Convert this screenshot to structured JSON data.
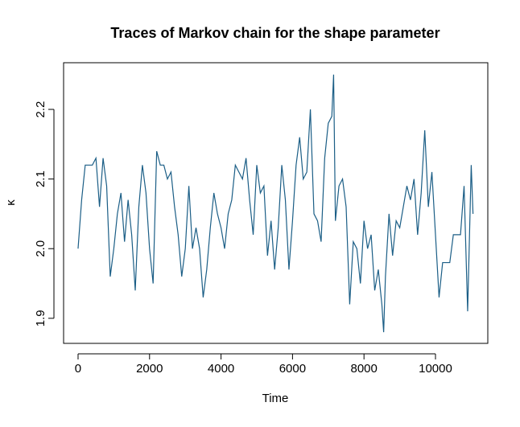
{
  "chart_data": {
    "type": "line",
    "title": "Traces of Markov chain for the shape parameter",
    "xlabel": "Time",
    "ylabel": "κ",
    "x": [
      0,
      100,
      200,
      300,
      400,
      500,
      600,
      700,
      800,
      900,
      1000,
      1100,
      1200,
      1300,
      1400,
      1500,
      1600,
      1700,
      1800,
      1900,
      2000,
      2100,
      2200,
      2300,
      2400,
      2500,
      2600,
      2700,
      2800,
      2900,
      3000,
      3100,
      3200,
      3300,
      3400,
      3500,
      3600,
      3700,
      3800,
      3900,
      4000,
      4100,
      4200,
      4300,
      4400,
      4500,
      4600,
      4700,
      4800,
      4900,
      5000,
      5100,
      5200,
      5300,
      5400,
      5500,
      5600,
      5700,
      5800,
      5900,
      6000,
      6100,
      6200,
      6300,
      6400,
      6500,
      6600,
      6700,
      6800,
      6900,
      7000,
      7100,
      7150,
      7200,
      7300,
      7400,
      7500,
      7600,
      7700,
      7800,
      7900,
      8000,
      8100,
      8200,
      8300,
      8400,
      8500,
      8550,
      8600,
      8700,
      8800,
      8900,
      9000,
      9100,
      9200,
      9300,
      9400,
      9500,
      9600,
      9700,
      9800,
      9900,
      10000,
      10100,
      10200,
      10300,
      10400,
      10500,
      10600,
      10700,
      10800,
      10900,
      11000,
      11050
    ],
    "series": [
      {
        "name": "κ",
        "color": "#1b5e86",
        "values": [
          2.0,
          2.07,
          2.12,
          2.12,
          2.12,
          2.13,
          2.06,
          2.13,
          2.09,
          1.96,
          2.0,
          2.05,
          2.08,
          2.01,
          2.07,
          2.02,
          1.94,
          2.06,
          2.12,
          2.08,
          2.0,
          1.95,
          2.14,
          2.12,
          2.12,
          2.1,
          2.11,
          2.06,
          2.02,
          1.96,
          2.0,
          2.09,
          2.0,
          2.03,
          2.0,
          1.93,
          1.97,
          2.03,
          2.08,
          2.05,
          2.03,
          2.0,
          2.05,
          2.07,
          2.12,
          2.11,
          2.1,
          2.13,
          2.07,
          2.02,
          2.12,
          2.08,
          2.09,
          1.99,
          2.04,
          1.97,
          2.03,
          2.12,
          2.07,
          1.97,
          2.04,
          2.12,
          2.16,
          2.1,
          2.11,
          2.2,
          2.05,
          2.04,
          2.01,
          2.13,
          2.18,
          2.19,
          2.25,
          2.04,
          2.09,
          2.1,
          2.06,
          1.92,
          2.01,
          2.0,
          1.95,
          2.04,
          2.0,
          2.02,
          1.94,
          1.97,
          1.92,
          1.88,
          1.96,
          2.05,
          1.99,
          2.04,
          2.03,
          2.06,
          2.09,
          2.07,
          2.1,
          2.02,
          2.08,
          2.17,
          2.06,
          2.11,
          2.02,
          1.93,
          1.98,
          1.98,
          1.98,
          2.02,
          2.02,
          2.02,
          2.09,
          1.91,
          2.12,
          2.05
        ]
      }
    ],
    "xlim": [
      -405,
      11464
    ],
    "ylim": [
      1.864,
      2.267
    ],
    "xticks": [
      0,
      2000,
      4000,
      6000,
      8000,
      10000
    ],
    "yticks": [
      1.9,
      {
        "value": 2,
        "label": "2.0"
      },
      2.1,
      2.2
    ]
  }
}
